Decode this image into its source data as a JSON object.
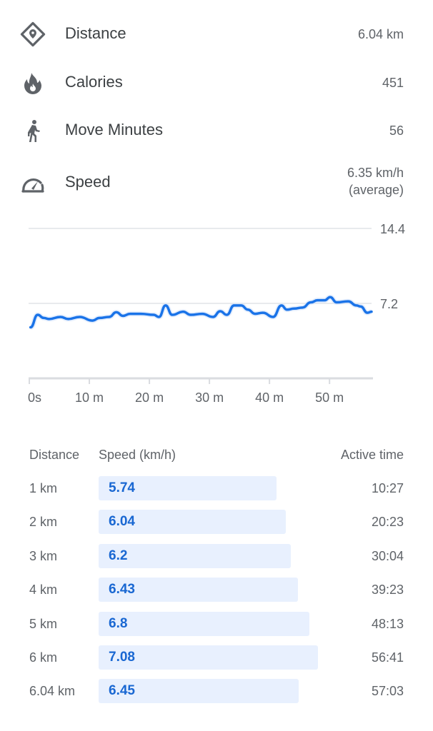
{
  "stats": [
    {
      "icon": "distance-diamond-pin-icon",
      "label": "Distance",
      "value": "6.04 km"
    },
    {
      "icon": "fire-icon",
      "label": "Calories",
      "value": "451"
    },
    {
      "icon": "walking-person-icon",
      "label": "Move Minutes",
      "value": "56"
    },
    {
      "icon": "speedometer-icon",
      "label": "Speed",
      "value": "6.35 km/h",
      "value_note": "(average)"
    }
  ],
  "chart_data": {
    "type": "line",
    "xlabel": "",
    "ylabel": "",
    "xlim": [
      0,
      57
    ],
    "ylim": [
      0,
      14.4
    ],
    "x_ticks": [
      {
        "value": 0,
        "label": "0s"
      },
      {
        "value": 10,
        "label": "10 m"
      },
      {
        "value": 20,
        "label": "20 m"
      },
      {
        "value": 30,
        "label": "30 m"
      },
      {
        "value": 40,
        "label": "40 m"
      },
      {
        "value": 50,
        "label": "50 m"
      }
    ],
    "y_ticks": [
      {
        "value": 14.4,
        "label": "14.4"
      },
      {
        "value": 7.2,
        "label": "7.2"
      }
    ],
    "grid": true,
    "color": "#1a73e8",
    "series": [
      {
        "x": [
          0.2,
          1.4,
          2.4,
          3.3,
          5.2,
          6.5,
          8.4,
          10.5,
          11.7,
          13.3,
          14.5,
          15.6,
          16.8,
          18.6,
          20.7,
          21.6,
          22.7,
          23.8,
          25.6,
          26.9,
          28.8,
          30.6,
          31.8,
          32.9,
          34.1,
          35.3,
          36.4,
          37.6,
          38.9,
          40.6,
          42.0,
          42.9,
          44.1,
          45.5,
          46.9,
          48.0,
          49.2,
          50.1,
          51.2,
          53.1,
          54.5,
          55.2,
          56.3,
          57.0
        ],
        "y": [
          4.9,
          6.1,
          5.8,
          5.7,
          5.9,
          5.7,
          5.9,
          5.55,
          5.8,
          5.9,
          6.35,
          6.0,
          6.2,
          6.2,
          6.1,
          5.9,
          7.0,
          6.1,
          6.4,
          6.1,
          6.2,
          5.9,
          6.45,
          6.1,
          7.0,
          7.0,
          6.6,
          6.2,
          6.3,
          5.9,
          7.0,
          6.6,
          6.7,
          6.8,
          7.3,
          7.5,
          7.5,
          7.8,
          7.3,
          7.4,
          7.0,
          6.9,
          6.3,
          6.4
        ]
      }
    ]
  },
  "splits": {
    "headers": {
      "distance": "Distance",
      "speed": "Speed (km/h)",
      "time": "Active time"
    },
    "bar_color": "#e8f0fe",
    "speed_color": "#1967d2",
    "rows": [
      {
        "distance": "1 km",
        "speed": "5.74",
        "time": "10:27"
      },
      {
        "distance": "2 km",
        "speed": "6.04",
        "time": "20:23"
      },
      {
        "distance": "3 km",
        "speed": "6.2",
        "time": "30:04"
      },
      {
        "distance": "4 km",
        "speed": "6.43",
        "time": "39:23"
      },
      {
        "distance": "5 km",
        "speed": "6.8",
        "time": "48:13"
      },
      {
        "distance": "6 km",
        "speed": "7.08",
        "time": "56:41"
      },
      {
        "distance": "6.04 km",
        "speed": "6.45",
        "time": "57:03"
      }
    ]
  }
}
